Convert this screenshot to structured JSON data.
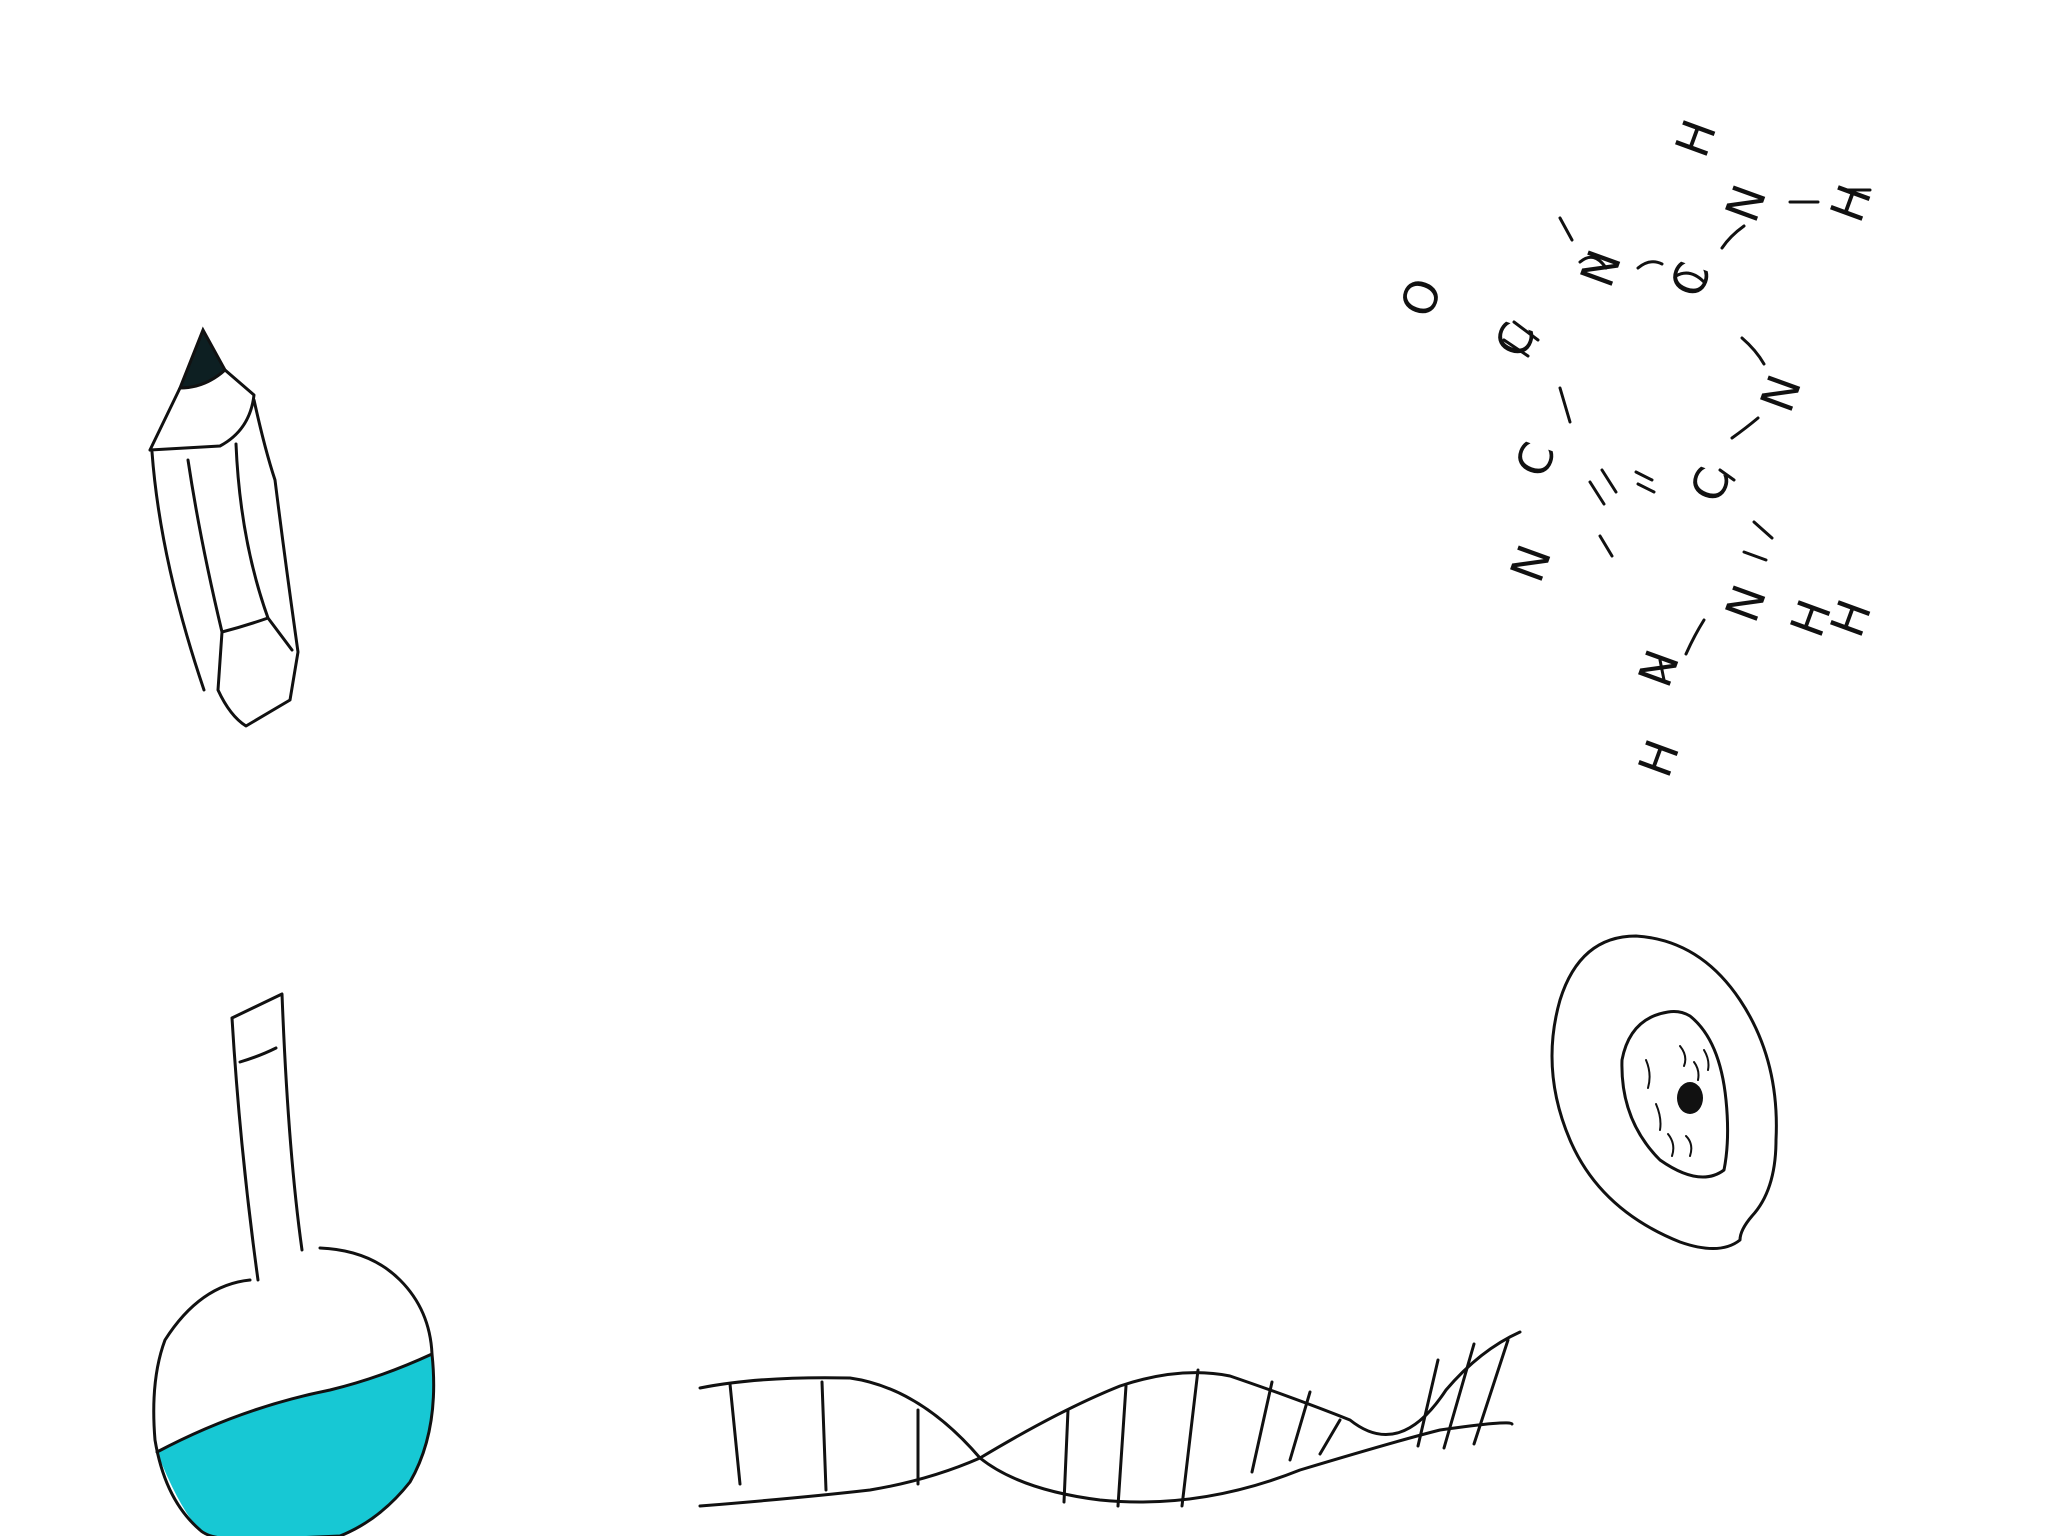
{
  "canvas": {
    "background": "#ffffff"
  },
  "colors": {
    "ink": "#111111",
    "liquid": "#17c8d4",
    "pencil_tip": "#0d1f22"
  },
  "molecule": {
    "atoms": [
      "H",
      "N",
      "H",
      "O",
      "C",
      "N",
      "C",
      "N",
      "C",
      "N",
      "C",
      "N",
      "H",
      "N",
      "H",
      "H"
    ]
  },
  "drawings": [
    {
      "name": "pencil-drawing"
    },
    {
      "name": "flask-drawing"
    },
    {
      "name": "dna-helix-drawing"
    },
    {
      "name": "eye-drawing"
    },
    {
      "name": "molecule-drawing"
    }
  ]
}
